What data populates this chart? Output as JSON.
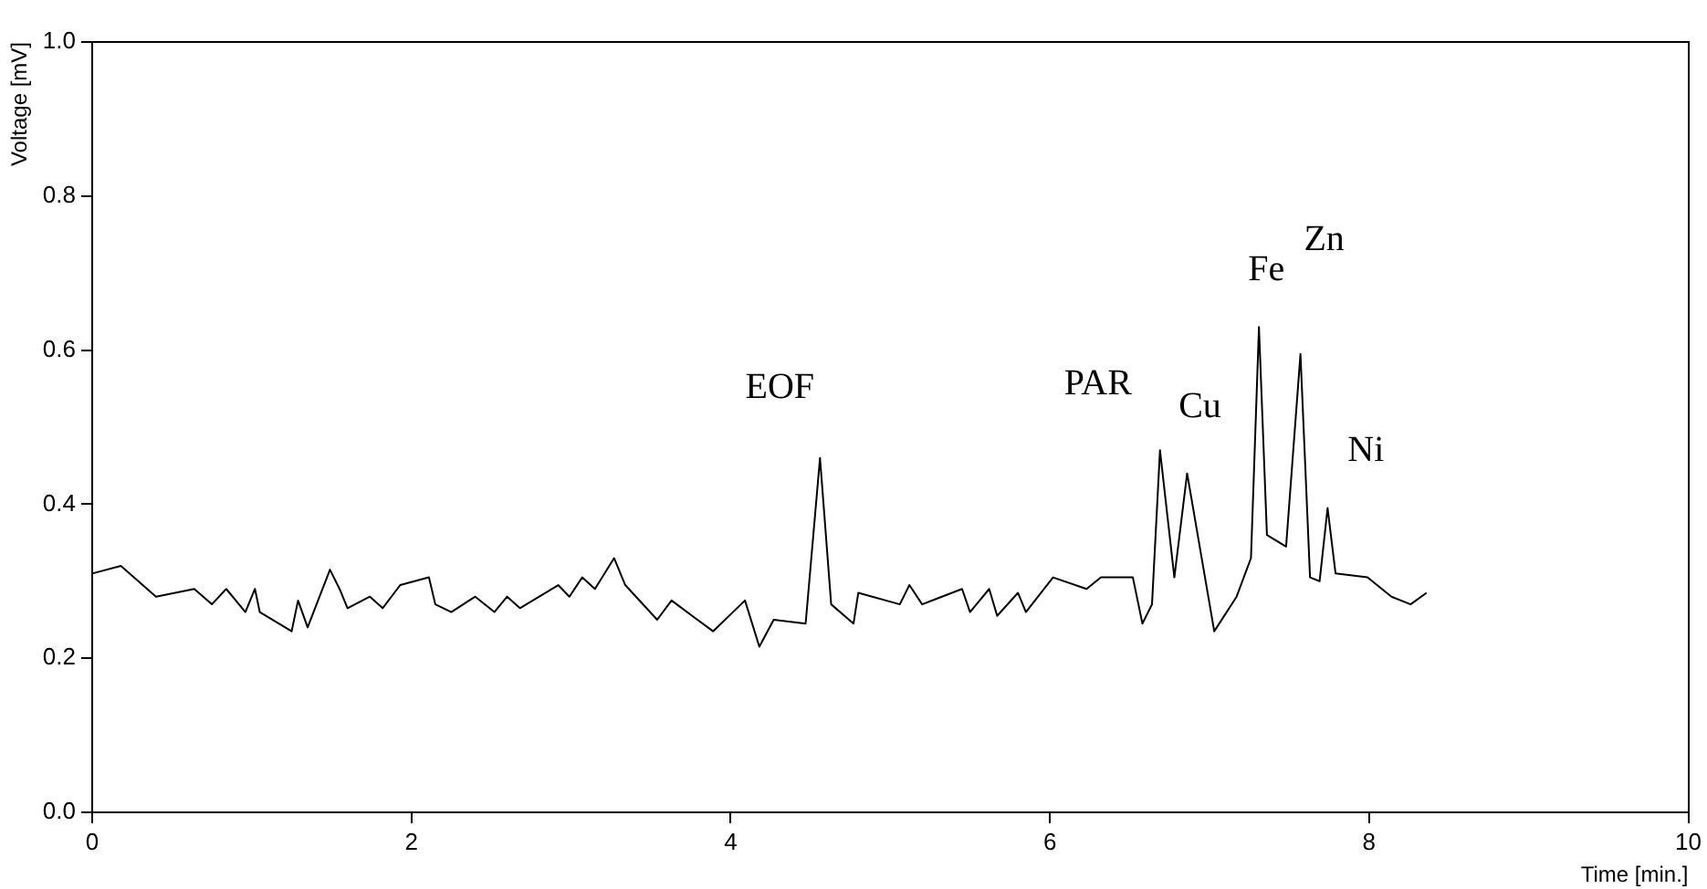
{
  "chart_data": {
    "type": "line",
    "xlabel": "Time [min.]",
    "ylabel": "Voltage [mV]",
    "xlim": [
      0,
      10
    ],
    "xticks": [
      0,
      2,
      4,
      6,
      8,
      10
    ],
    "ylim": [
      0,
      1
    ],
    "yticks": [
      {
        "value": 0,
        "label": "0.0"
      },
      0.2,
      0.4,
      0.6,
      0.8,
      {
        "value": 1,
        "label": "1.0"
      }
    ],
    "grid": false,
    "legend": false,
    "marker": "none",
    "line_style": "solid",
    "series": [
      {
        "color": "#000000",
        "x": [
          0,
          0.18,
          0.4,
          0.64,
          0.75,
          0.84,
          0.96,
          1.02,
          1.05,
          1.25,
          1.29,
          1.35,
          1.49,
          1.55,
          1.6,
          1.74,
          1.82,
          1.93,
          2.11,
          2.15,
          2.25,
          2.4,
          2.52,
          2.6,
          2.68,
          2.92,
          2.99,
          3.07,
          3.15,
          3.27,
          3.34,
          3.54,
          3.63,
          3.89,
          4.09,
          4.18,
          4.27,
          4.47,
          4.56,
          4.63,
          4.77,
          4.8,
          5.06,
          5.12,
          5.2,
          5.45,
          5.5,
          5.62,
          5.67,
          5.8,
          5.85,
          6.02,
          6.23,
          6.32,
          6.52,
          6.58,
          6.64,
          6.69,
          6.78,
          6.86,
          7.03,
          7.17,
          7.26,
          7.31,
          7.36,
          7.48,
          7.57,
          7.63,
          7.69,
          7.74,
          7.79,
          7.99,
          8.14,
          8.26,
          8.36
        ],
        "values": [
          0.31,
          0.32,
          0.28,
          0.29,
          0.27,
          0.29,
          0.26,
          0.29,
          0.26,
          0.235,
          0.275,
          0.24,
          0.315,
          0.29,
          0.265,
          0.28,
          0.265,
          0.295,
          0.305,
          0.27,
          0.26,
          0.28,
          0.26,
          0.28,
          0.265,
          0.295,
          0.28,
          0.305,
          0.29,
          0.33,
          0.295,
          0.25,
          0.275,
          0.235,
          0.275,
          0.215,
          0.25,
          0.245,
          0.46,
          0.27,
          0.245,
          0.285,
          0.27,
          0.295,
          0.27,
          0.29,
          0.26,
          0.29,
          0.255,
          0.285,
          0.26,
          0.305,
          0.29,
          0.305,
          0.305,
          0.245,
          0.27,
          0.47,
          0.305,
          0.44,
          0.235,
          0.28,
          0.33,
          0.63,
          0.36,
          0.345,
          0.595,
          0.305,
          0.3,
          0.395,
          0.31,
          0.305,
          0.28,
          0.27,
          0.285
        ]
      }
    ],
    "annotations": [
      {
        "text": "EOF",
        "x": 4.56,
        "y": 0.46
      },
      {
        "text": "PAR",
        "x": 6.69,
        "y": 0.47
      },
      {
        "text": "Cu",
        "x": 6.86,
        "y": 0.44
      },
      {
        "text": "Fe",
        "x": 7.31,
        "y": 0.63
      },
      {
        "text": "Zn",
        "x": 7.57,
        "y": 0.595
      },
      {
        "text": "Ni",
        "x": 7.74,
        "y": 0.395
      }
    ]
  }
}
